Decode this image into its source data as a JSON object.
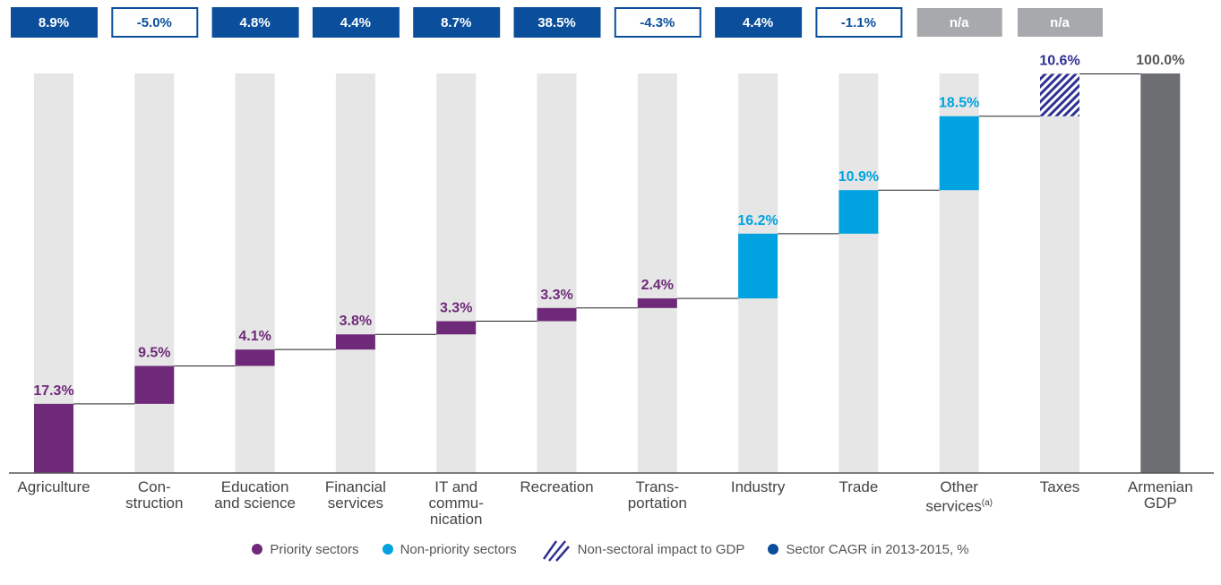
{
  "chart_data": {
    "type": "waterfall",
    "categories": [
      "Agriculture",
      "Con-\nstruction",
      "Education\nand science",
      "Financial\nservices",
      "IT and\ncommu-\nnication",
      "Recreation",
      "Trans-\nportation",
      "Industry",
      "Trade",
      "Other\nservices",
      "Taxes",
      "Armenian\nGDP"
    ],
    "footnote": {
      "index": 9,
      "label": "(a)"
    },
    "values": [
      17.3,
      9.5,
      4.1,
      3.8,
      3.3,
      3.3,
      2.4,
      16.2,
      10.9,
      18.5,
      10.6,
      100.0
    ],
    "value_labels": [
      "17.3%",
      "9.5%",
      "4.1%",
      "3.8%",
      "3.3%",
      "3.3%",
      "2.4%",
      "16.2%",
      "10.9%",
      "18.5%",
      "10.6%",
      "100.0%"
    ],
    "groups": [
      "Priority sectors",
      "Priority sectors",
      "Priority sectors",
      "Priority sectors",
      "Priority sectors",
      "Priority sectors",
      "Priority sectors",
      "Non-priority sectors",
      "Non-priority sectors",
      "Non-priority sectors",
      "Non-sectoral impact to GDP",
      null
    ],
    "total_color": "#6d6e71",
    "cagr": [
      8.9,
      -5.0,
      4.8,
      4.4,
      8.7,
      38.5,
      -4.3,
      4.4,
      -1.1,
      null,
      null,
      null
    ],
    "cagr_labels": [
      "8.9%",
      "-5.0%",
      "4.8%",
      "4.4%",
      "8.7%",
      "38.5%",
      "-4.3%",
      "4.4%",
      "-1.1%",
      "n/a",
      "n/a",
      null
    ],
    "cagr_color": "#0b4f9c",
    "legend": [
      {
        "name": "Priority sectors",
        "color": "#6e2a78"
      },
      {
        "name": "Non-priority sectors",
        "color": "#00a3e0"
      },
      {
        "name": "Non-sectoral impact to GDP",
        "color": "#2e3192",
        "hatch": true
      },
      {
        "name": "Sector CAGR in 2013-2015, %",
        "color": "#0b4f9c"
      }
    ],
    "ylim": [
      0,
      100
    ]
  }
}
